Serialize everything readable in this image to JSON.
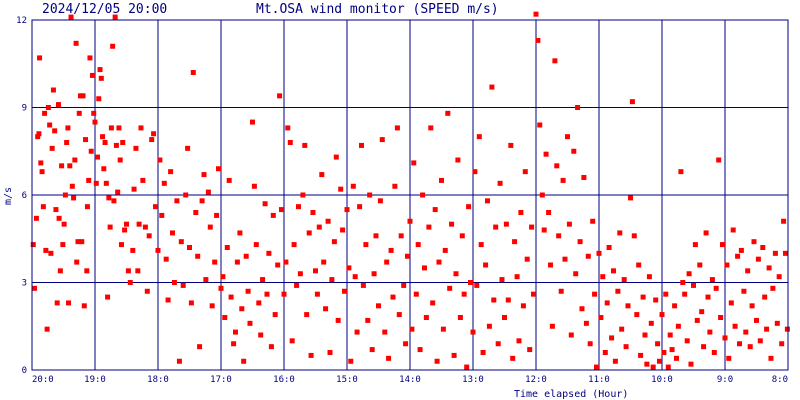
{
  "chart_data": {
    "type": "scatter",
    "timestamp": "2024/12/05 20:00",
    "title": "Mt.OSA wind monitor (SPEED m/s)",
    "xlabel": "Time elapsed (Hour)",
    "ylabel": "m/s",
    "x_unit": "hours elapsed (0 = 20:00, increasing toward 8:0)",
    "xlim": [
      0,
      12
    ],
    "ylim": [
      0,
      12
    ],
    "y_ticks": [
      "0",
      "3",
      "6",
      "9",
      "12"
    ],
    "x_ticks": [
      "20:0",
      "19:0",
      "18:0",
      "17:0",
      "16:0",
      "15:0",
      "14:0",
      "13:0",
      "12:0",
      "11:0",
      "10:0",
      "9:0",
      "8:0"
    ],
    "grid": true,
    "colors": {
      "points": "#ff0000",
      "grid": "#000080",
      "text": "#000080",
      "background": "#ffffff"
    },
    "points": [
      [
        0.02,
        4.3
      ],
      [
        0.04,
        2.8
      ],
      [
        0.07,
        5.2
      ],
      [
        0.09,
        8.0
      ],
      [
        0.11,
        8.1
      ],
      [
        0.12,
        10.7
      ],
      [
        0.14,
        7.1
      ],
      [
        0.16,
        6.8
      ],
      [
        0.18,
        5.6
      ],
      [
        0.2,
        8.8
      ],
      [
        0.22,
        4.1
      ],
      [
        0.24,
        1.4
      ],
      [
        0.26,
        9.0
      ],
      [
        0.28,
        8.4
      ],
      [
        0.3,
        4.0
      ],
      [
        0.32,
        7.6
      ],
      [
        0.34,
        9.6
      ],
      [
        0.36,
        8.2
      ],
      [
        0.38,
        5.5
      ],
      [
        0.4,
        2.3
      ],
      [
        0.42,
        9.1
      ],
      [
        0.43,
        5.2
      ],
      [
        0.45,
        3.4
      ],
      [
        0.47,
        7.0
      ],
      [
        0.49,
        4.3
      ],
      [
        0.51,
        5.0
      ],
      [
        0.53,
        6.0
      ],
      [
        0.55,
        7.8
      ],
      [
        0.57,
        8.3
      ],
      [
        0.58,
        2.3
      ],
      [
        0.6,
        7.0
      ],
      [
        0.62,
        12.1
      ],
      [
        0.64,
        6.3
      ],
      [
        0.66,
        5.9
      ],
      [
        0.68,
        7.2
      ],
      [
        0.7,
        11.2
      ],
      [
        0.71,
        3.7
      ],
      [
        0.73,
        4.4
      ],
      [
        0.75,
        8.8
      ],
      [
        0.77,
        9.4
      ],
      [
        0.79,
        4.4
      ],
      [
        0.81,
        9.4
      ],
      [
        0.83,
        2.2
      ],
      [
        0.85,
        7.9
      ],
      [
        0.87,
        3.4
      ],
      [
        0.88,
        5.6
      ],
      [
        0.9,
        6.5
      ],
      [
        0.92,
        10.7
      ],
      [
        0.94,
        7.5
      ],
      [
        0.96,
        10.1
      ],
      [
        0.98,
        8.8
      ],
      [
        1.0,
        8.5
      ],
      [
        1.02,
        6.4
      ],
      [
        1.04,
        7.3
      ],
      [
        1.06,
        9.3
      ],
      [
        1.08,
        10.3
      ],
      [
        1.1,
        10.0
      ],
      [
        1.12,
        8.0
      ],
      [
        1.14,
        6.9
      ],
      [
        1.16,
        7.8
      ],
      [
        1.18,
        6.4
      ],
      [
        1.2,
        2.5
      ],
      [
        1.22,
        5.9
      ],
      [
        1.24,
        4.9
      ],
      [
        1.26,
        8.3
      ],
      [
        1.28,
        11.1
      ],
      [
        1.3,
        5.8
      ],
      [
        1.32,
        12.1
      ],
      [
        1.34,
        7.7
      ],
      [
        1.36,
        6.1
      ],
      [
        1.38,
        8.3
      ],
      [
        1.4,
        7.2
      ],
      [
        1.42,
        4.3
      ],
      [
        1.44,
        7.8
      ],
      [
        1.47,
        4.8
      ],
      [
        1.5,
        5.0
      ],
      [
        1.53,
        3.4
      ],
      [
        1.56,
        3.0
      ],
      [
        1.6,
        4.1
      ],
      [
        1.62,
        6.2
      ],
      [
        1.65,
        7.6
      ],
      [
        1.68,
        3.4
      ],
      [
        1.7,
        5.0
      ],
      [
        1.73,
        8.3
      ],
      [
        1.76,
        6.5
      ],
      [
        1.8,
        4.9
      ],
      [
        1.83,
        2.7
      ],
      [
        1.86,
        4.6
      ],
      [
        1.9,
        7.9
      ],
      [
        1.93,
        8.1
      ],
      [
        1.96,
        5.6
      ],
      [
        2.0,
        4.1
      ],
      [
        2.03,
        7.2
      ],
      [
        2.06,
        5.3
      ],
      [
        2.1,
        6.4
      ],
      [
        2.13,
        3.8
      ],
      [
        2.16,
        2.4
      ],
      [
        2.2,
        6.8
      ],
      [
        2.23,
        4.7
      ],
      [
        2.26,
        3.0
      ],
      [
        2.3,
        5.8
      ],
      [
        2.34,
        0.3
      ],
      [
        2.37,
        4.4
      ],
      [
        2.4,
        2.9
      ],
      [
        2.44,
        6.0
      ],
      [
        2.47,
        7.6
      ],
      [
        2.5,
        4.2
      ],
      [
        2.53,
        2.3
      ],
      [
        2.56,
        10.2
      ],
      [
        2.6,
        5.4
      ],
      [
        2.63,
        3.9
      ],
      [
        2.66,
        0.8
      ],
      [
        2.7,
        5.8
      ],
      [
        2.73,
        6.7
      ],
      [
        2.76,
        3.1
      ],
      [
        2.8,
        6.1
      ],
      [
        2.83,
        4.9
      ],
      [
        2.86,
        2.2
      ],
      [
        2.9,
        3.7
      ],
      [
        2.93,
        5.3
      ],
      [
        2.96,
        6.9
      ],
      [
        3.0,
        2.8
      ],
      [
        3.03,
        3.2
      ],
      [
        3.06,
        1.8
      ],
      [
        3.1,
        4.2
      ],
      [
        3.13,
        6.5
      ],
      [
        3.16,
        2.5
      ],
      [
        3.2,
        0.9
      ],
      [
        3.23,
        1.3
      ],
      [
        3.26,
        3.7
      ],
      [
        3.3,
        4.7
      ],
      [
        3.33,
        2.1
      ],
      [
        3.36,
        0.3
      ],
      [
        3.4,
        3.9
      ],
      [
        3.43,
        2.7
      ],
      [
        3.46,
        1.6
      ],
      [
        3.5,
        8.5
      ],
      [
        3.53,
        6.3
      ],
      [
        3.56,
        4.3
      ],
      [
        3.6,
        2.3
      ],
      [
        3.63,
        1.2
      ],
      [
        3.66,
        3.1
      ],
      [
        3.7,
        5.7
      ],
      [
        3.73,
        2.6
      ],
      [
        3.76,
        4.0
      ],
      [
        3.8,
        0.8
      ],
      [
        3.83,
        5.3
      ],
      [
        3.86,
        1.9
      ],
      [
        3.9,
        3.6
      ],
      [
        3.93,
        9.4
      ],
      [
        3.96,
        5.5
      ],
      [
        4.0,
        2.6
      ],
      [
        4.03,
        3.7
      ],
      [
        4.06,
        8.3
      ],
      [
        4.1,
        7.8
      ],
      [
        4.13,
        1.0
      ],
      [
        4.16,
        4.3
      ],
      [
        4.2,
        2.9
      ],
      [
        4.23,
        5.6
      ],
      [
        4.26,
        3.3
      ],
      [
        4.3,
        6.0
      ],
      [
        4.33,
        7.7
      ],
      [
        4.36,
        1.9
      ],
      [
        4.4,
        4.7
      ],
      [
        4.43,
        0.5
      ],
      [
        4.46,
        5.4
      ],
      [
        4.5,
        3.4
      ],
      [
        4.53,
        2.6
      ],
      [
        4.56,
        4.9
      ],
      [
        4.6,
        6.7
      ],
      [
        4.63,
        3.7
      ],
      [
        4.66,
        2.1
      ],
      [
        4.7,
        5.1
      ],
      [
        4.73,
        0.6
      ],
      [
        4.76,
        3.1
      ],
      [
        4.8,
        4.4
      ],
      [
        4.83,
        7.3
      ],
      [
        4.86,
        1.7
      ],
      [
        4.9,
        6.2
      ],
      [
        4.93,
        4.8
      ],
      [
        4.96,
        2.7
      ],
      [
        5.0,
        5.5
      ],
      [
        5.03,
        3.5
      ],
      [
        5.06,
        0.3
      ],
      [
        5.1,
        6.3
      ],
      [
        5.13,
        3.2
      ],
      [
        5.16,
        1.3
      ],
      [
        5.2,
        5.6
      ],
      [
        5.23,
        7.7
      ],
      [
        5.26,
        2.9
      ],
      [
        5.3,
        4.3
      ],
      [
        5.33,
        1.7
      ],
      [
        5.36,
        6.0
      ],
      [
        5.4,
        0.7
      ],
      [
        5.43,
        3.3
      ],
      [
        5.46,
        4.6
      ],
      [
        5.5,
        2.2
      ],
      [
        5.53,
        5.8
      ],
      [
        5.56,
        7.9
      ],
      [
        5.6,
        1.3
      ],
      [
        5.63,
        3.7
      ],
      [
        5.66,
        0.4
      ],
      [
        5.7,
        4.1
      ],
      [
        5.73,
        2.5
      ],
      [
        5.76,
        6.3
      ],
      [
        5.8,
        8.3
      ],
      [
        5.83,
        1.9
      ],
      [
        5.86,
        4.6
      ],
      [
        5.9,
        2.9
      ],
      [
        5.93,
        0.9
      ],
      [
        5.96,
        3.9
      ],
      [
        6.0,
        5.1
      ],
      [
        6.03,
        1.4
      ],
      [
        6.06,
        7.1
      ],
      [
        6.1,
        2.6
      ],
      [
        6.13,
        4.3
      ],
      [
        6.16,
        0.7
      ],
      [
        6.2,
        6.0
      ],
      [
        6.23,
        3.5
      ],
      [
        6.26,
        1.8
      ],
      [
        6.3,
        4.9
      ],
      [
        6.33,
        8.3
      ],
      [
        6.36,
        2.3
      ],
      [
        6.4,
        5.5
      ],
      [
        6.43,
        0.3
      ],
      [
        6.46,
        3.7
      ],
      [
        6.5,
        6.5
      ],
      [
        6.53,
        1.4
      ],
      [
        6.56,
        4.1
      ],
      [
        6.6,
        8.8
      ],
      [
        6.63,
        2.8
      ],
      [
        6.66,
        5.0
      ],
      [
        6.7,
        0.5
      ],
      [
        6.73,
        3.3
      ],
      [
        6.76,
        7.2
      ],
      [
        6.8,
        1.8
      ],
      [
        6.83,
        4.6
      ],
      [
        6.86,
        2.6
      ],
      [
        6.9,
        0.1
      ],
      [
        6.93,
        5.6
      ],
      [
        6.96,
        3.0
      ],
      [
        7.0,
        1.3
      ],
      [
        7.03,
        6.8
      ],
      [
        7.06,
        2.9
      ],
      [
        7.1,
        8.0
      ],
      [
        7.13,
        4.3
      ],
      [
        7.16,
        0.6
      ],
      [
        7.2,
        3.6
      ],
      [
        7.23,
        5.8
      ],
      [
        7.26,
        1.5
      ],
      [
        7.3,
        9.7
      ],
      [
        7.33,
        2.4
      ],
      [
        7.36,
        4.9
      ],
      [
        7.4,
        0.9
      ],
      [
        7.43,
        6.4
      ],
      [
        7.46,
        3.1
      ],
      [
        7.5,
        1.8
      ],
      [
        7.53,
        5.0
      ],
      [
        7.56,
        2.4
      ],
      [
        7.6,
        7.7
      ],
      [
        7.63,
        0.4
      ],
      [
        7.66,
        4.4
      ],
      [
        7.7,
        3.2
      ],
      [
        7.73,
        1.0
      ],
      [
        7.76,
        5.4
      ],
      [
        7.8,
        2.2
      ],
      [
        7.83,
        6.8
      ],
      [
        7.86,
        3.8
      ],
      [
        7.9,
        0.7
      ],
      [
        7.93,
        4.9
      ],
      [
        7.96,
        2.6
      ],
      [
        8.0,
        12.2
      ],
      [
        8.03,
        11.3
      ],
      [
        8.06,
        8.4
      ],
      [
        8.1,
        6.0
      ],
      [
        8.13,
        4.8
      ],
      [
        8.16,
        7.4
      ],
      [
        8.2,
        5.4
      ],
      [
        8.23,
        3.6
      ],
      [
        8.26,
        1.5
      ],
      [
        8.3,
        10.6
      ],
      [
        8.33,
        7.0
      ],
      [
        8.36,
        4.6
      ],
      [
        8.4,
        2.7
      ],
      [
        8.43,
        6.5
      ],
      [
        8.46,
        3.8
      ],
      [
        8.5,
        8.0
      ],
      [
        8.53,
        5.0
      ],
      [
        8.56,
        1.2
      ],
      [
        8.6,
        7.5
      ],
      [
        8.63,
        3.3
      ],
      [
        8.66,
        9.0
      ],
      [
        8.7,
        4.4
      ],
      [
        8.73,
        2.1
      ],
      [
        8.76,
        6.6
      ],
      [
        8.8,
        1.6
      ],
      [
        8.83,
        3.9
      ],
      [
        8.86,
        0.9
      ],
      [
        8.9,
        5.1
      ],
      [
        8.93,
        2.6
      ],
      [
        8.96,
        0.1
      ],
      [
        9.0,
        4.0
      ],
      [
        9.03,
        1.8
      ],
      [
        9.06,
        3.2
      ],
      [
        9.1,
        0.6
      ],
      [
        9.13,
        2.3
      ],
      [
        9.16,
        4.2
      ],
      [
        9.2,
        1.1
      ],
      [
        9.23,
        3.4
      ],
      [
        9.26,
        0.3
      ],
      [
        9.3,
        2.7
      ],
      [
        9.33,
        4.7
      ],
      [
        9.36,
        1.4
      ],
      [
        9.4,
        3.1
      ],
      [
        9.43,
        0.8
      ],
      [
        9.46,
        2.2
      ],
      [
        9.5,
        5.9
      ],
      [
        9.53,
        9.2
      ],
      [
        9.56,
        4.6
      ],
      [
        9.6,
        1.9
      ],
      [
        9.63,
        3.6
      ],
      [
        9.66,
        0.5
      ],
      [
        9.7,
        2.5
      ],
      [
        9.73,
        1.2
      ],
      [
        9.76,
        0.2
      ],
      [
        9.8,
        3.2
      ],
      [
        9.83,
        1.6
      ],
      [
        9.86,
        0.1
      ],
      [
        9.9,
        2.4
      ],
      [
        9.93,
        0.9
      ],
      [
        9.96,
        0.3
      ],
      [
        10.0,
        1.9
      ],
      [
        10.03,
        0.6
      ],
      [
        10.06,
        2.6
      ],
      [
        10.1,
        0.1
      ],
      [
        10.13,
        1.2
      ],
      [
        10.16,
        0.7
      ],
      [
        10.2,
        2.2
      ],
      [
        10.23,
        0.4
      ],
      [
        10.26,
        1.5
      ],
      [
        10.3,
        6.8
      ],
      [
        10.33,
        3.0
      ],
      [
        10.36,
        2.6
      ],
      [
        10.4,
        1.0
      ],
      [
        10.43,
        3.3
      ],
      [
        10.46,
        0.2
      ],
      [
        10.5,
        2.9
      ],
      [
        10.53,
        4.3
      ],
      [
        10.56,
        1.7
      ],
      [
        10.6,
        3.6
      ],
      [
        10.63,
        2.0
      ],
      [
        10.66,
        0.8
      ],
      [
        10.7,
        4.7
      ],
      [
        10.73,
        2.5
      ],
      [
        10.76,
        1.3
      ],
      [
        10.8,
        3.1
      ],
      [
        10.83,
        0.6
      ],
      [
        10.86,
        2.8
      ],
      [
        10.9,
        7.2
      ],
      [
        10.93,
        1.8
      ],
      [
        10.96,
        4.3
      ],
      [
        11.0,
        1.1
      ],
      [
        11.03,
        3.6
      ],
      [
        11.06,
        0.4
      ],
      [
        11.1,
        2.3
      ],
      [
        11.13,
        4.8
      ],
      [
        11.16,
        1.5
      ],
      [
        11.2,
        3.9
      ],
      [
        11.23,
        0.9
      ],
      [
        11.26,
        4.1
      ],
      [
        11.3,
        2.7
      ],
      [
        11.33,
        1.3
      ],
      [
        11.36,
        3.4
      ],
      [
        11.4,
        0.8
      ],
      [
        11.43,
        2.2
      ],
      [
        11.46,
        4.4
      ],
      [
        11.5,
        1.7
      ],
      [
        11.53,
        3.8
      ],
      [
        11.56,
        1.0
      ],
      [
        11.6,
        4.2
      ],
      [
        11.63,
        2.5
      ],
      [
        11.66,
        1.4
      ],
      [
        11.7,
        3.5
      ],
      [
        11.73,
        0.4
      ],
      [
        11.76,
        2.8
      ],
      [
        11.8,
        4.0
      ],
      [
        11.83,
        1.6
      ],
      [
        11.86,
        3.2
      ],
      [
        11.9,
        0.9
      ],
      [
        11.93,
        5.1
      ],
      [
        11.96,
        4.0
      ],
      [
        11.99,
        1.4
      ]
    ]
  }
}
